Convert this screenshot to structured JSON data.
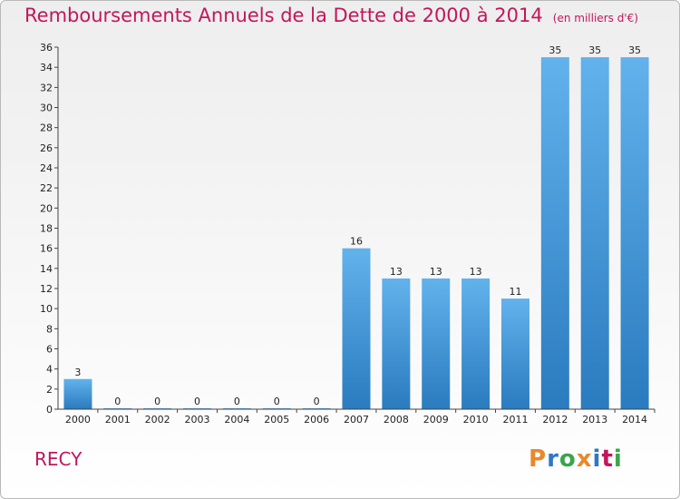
{
  "title": "Remboursements Annuels de la Dette de 2000 à 2014",
  "subtitle": "(en milliers d'€)",
  "place": "RECY",
  "logo": {
    "letters": [
      "P",
      "r",
      "o",
      "x",
      "i",
      "t",
      "i"
    ],
    "colors": [
      "#e8892b",
      "#2f78c4",
      "#3aa64a",
      "#e8892b",
      "#2f78c4",
      "#c2165b",
      "#3aa64a"
    ]
  },
  "colors": {
    "bar_top": "#62b2ec",
    "bar_bottom": "#2a7bbf",
    "title": "#c2165b"
  },
  "chart_data": {
    "type": "bar",
    "categories": [
      "2000",
      "2001",
      "2002",
      "2003",
      "2004",
      "2005",
      "2006",
      "2007",
      "2008",
      "2009",
      "2010",
      "2011",
      "2012",
      "2013",
      "2014"
    ],
    "values": [
      3,
      0,
      0,
      0,
      0,
      0,
      0,
      16,
      13,
      13,
      13,
      11,
      35,
      35,
      35
    ],
    "data_labels": [
      "3",
      "0",
      "0",
      "0",
      "0",
      "0",
      "0",
      "16",
      "13",
      "13",
      "13",
      "11",
      "35",
      "35",
      "35"
    ],
    "ylim": [
      0,
      36
    ],
    "yticks": [
      0,
      2,
      4,
      6,
      8,
      10,
      12,
      14,
      16,
      18,
      20,
      22,
      24,
      26,
      28,
      30,
      32,
      34,
      36
    ],
    "grid": false
  }
}
